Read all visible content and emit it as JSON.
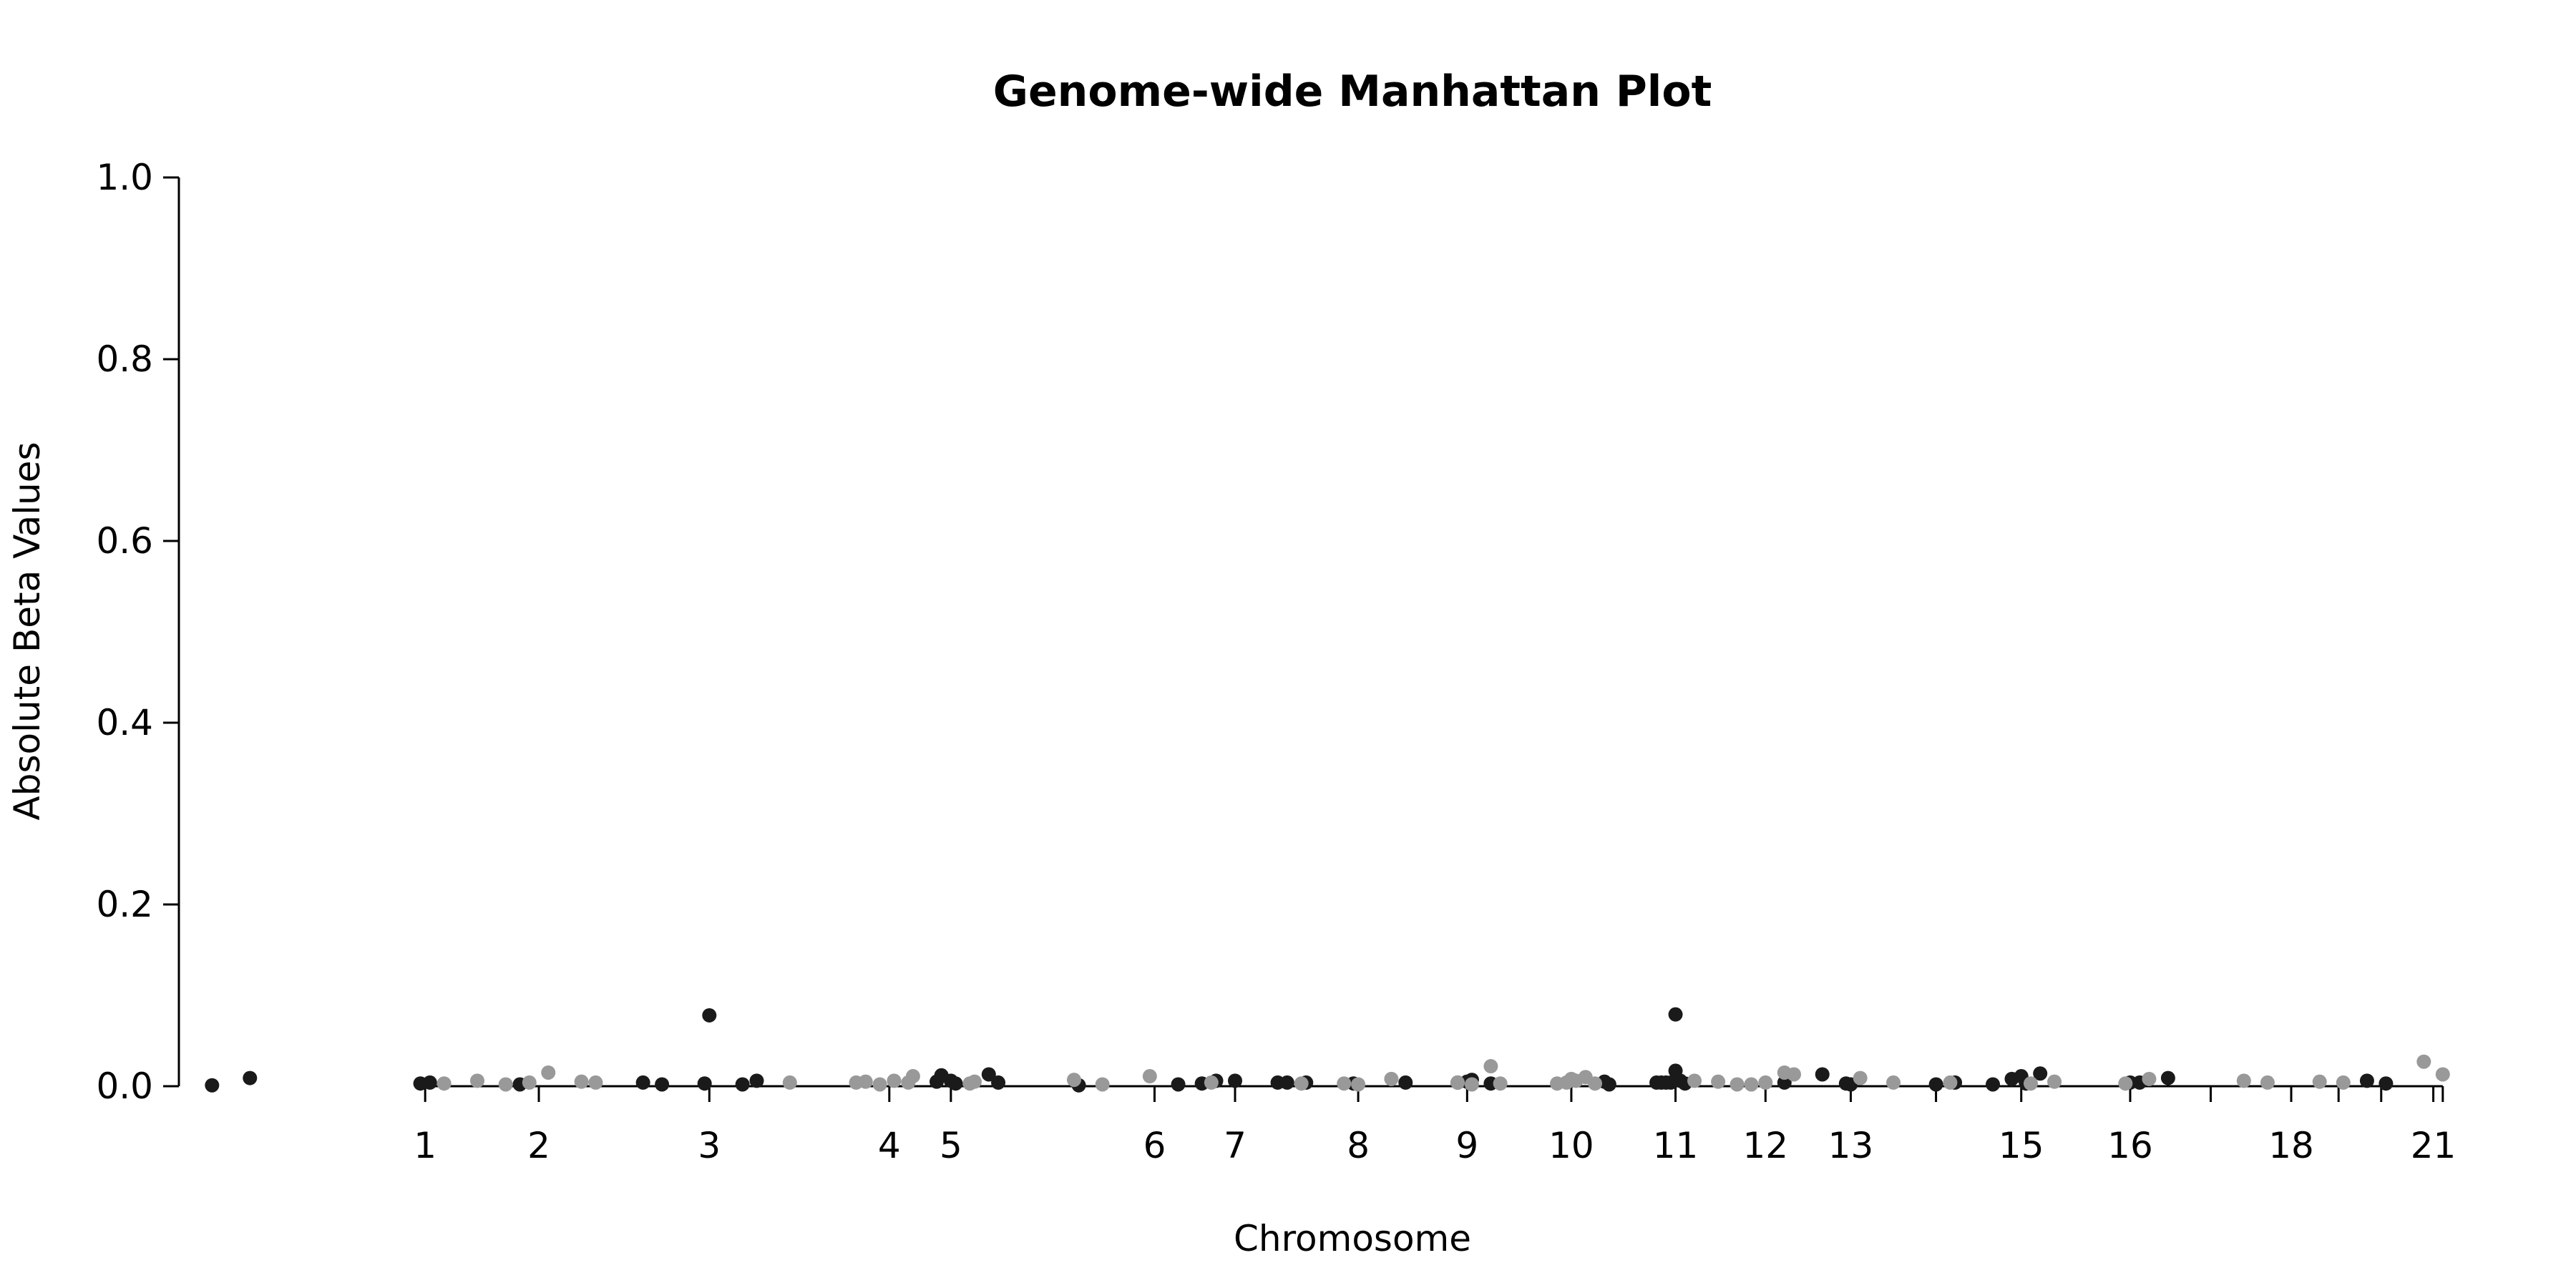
{
  "chart_data": {
    "type": "scatter",
    "title": "Genome-wide Manhattan Plot",
    "xlabel": "Chromosome",
    "ylabel": "Absolute Beta Values",
    "xlim": [
      -1.6,
      22.8
    ],
    "ylim": [
      0,
      1.0
    ],
    "yticks": [
      0.0,
      0.2,
      0.4,
      0.6,
      0.8,
      1.0
    ],
    "ytick_labels": [
      "0.0",
      "0.2",
      "0.4",
      "0.6",
      "0.8",
      "1.0"
    ],
    "xticks": [
      1.0,
      2.2,
      4.0,
      5.9,
      6.55,
      8.7,
      9.55,
      10.85,
      12.0,
      13.1,
      14.2,
      15.15,
      16.05,
      16.95,
      17.85,
      19.0,
      19.85,
      20.7,
      21.2,
      21.65,
      22.2,
      22.3
    ],
    "xtick_labels": [
      "1",
      "2",
      "3",
      "4",
      "5",
      "6",
      "7",
      "8",
      "9",
      "10",
      "11",
      "12",
      "13",
      "",
      "15",
      "16",
      "",
      "18",
      "",
      "",
      "21",
      ""
    ],
    "grid": false,
    "legend": "none",
    "colors": {
      "dark": "#1a1a1a",
      "light": "#999999"
    },
    "series": [
      {
        "color": "dark",
        "points": [
          [
            -1.25,
            0.001
          ],
          [
            -0.85,
            0.009
          ],
          [
            0.95,
            0.003
          ],
          [
            1.05,
            0.004
          ],
          [
            2.0,
            0.002
          ],
          [
            3.3,
            0.004
          ],
          [
            3.5,
            0.002
          ],
          [
            3.95,
            0.003
          ],
          [
            4.0,
            0.078
          ],
          [
            4.35,
            0.002
          ],
          [
            4.5,
            0.006
          ],
          [
            6.4,
            0.005
          ],
          [
            6.45,
            0.012
          ],
          [
            6.55,
            0.006
          ],
          [
            6.6,
            0.003
          ],
          [
            6.95,
            0.013
          ],
          [
            7.05,
            0.004
          ],
          [
            7.9,
            0.001
          ],
          [
            8.95,
            0.002
          ],
          [
            9.2,
            0.003
          ],
          [
            9.35,
            0.006
          ],
          [
            9.55,
            0.006
          ],
          [
            10.0,
            0.004
          ],
          [
            10.1,
            0.004
          ],
          [
            10.3,
            0.004
          ],
          [
            10.8,
            0.003
          ],
          [
            11.35,
            0.004
          ],
          [
            11.9,
            0.004
          ],
          [
            12.0,
            0.005
          ],
          [
            12.05,
            0.007
          ],
          [
            12.25,
            0.003
          ],
          [
            13.45,
            0.005
          ],
          [
            13.5,
            0.002
          ],
          [
            14.0,
            0.004
          ],
          [
            14.05,
            0.004
          ],
          [
            14.1,
            0.004
          ],
          [
            14.15,
            0.004
          ],
          [
            14.2,
            0.017
          ],
          [
            14.2,
            0.079
          ],
          [
            14.25,
            0.006
          ],
          [
            14.3,
            0.003
          ],
          [
            15.35,
            0.004
          ],
          [
            15.75,
            0.013
          ],
          [
            16.0,
            0.003
          ],
          [
            16.05,
            0.002
          ],
          [
            16.95,
            0.002
          ],
          [
            17.15,
            0.004
          ],
          [
            17.55,
            0.002
          ],
          [
            17.75,
            0.008
          ],
          [
            17.85,
            0.011
          ],
          [
            17.9,
            0.003
          ],
          [
            18.05,
            0.014
          ],
          [
            19.0,
            0.004
          ],
          [
            19.1,
            0.004
          ],
          [
            19.4,
            0.009
          ],
          [
            21.5,
            0.006
          ],
          [
            21.7,
            0.003
          ]
        ]
      },
      {
        "color": "light",
        "points": [
          [
            1.2,
            0.003
          ],
          [
            1.55,
            0.006
          ],
          [
            1.85,
            0.002
          ],
          [
            2.1,
            0.004
          ],
          [
            2.3,
            0.015
          ],
          [
            2.65,
            0.005
          ],
          [
            2.8,
            0.004
          ],
          [
            4.85,
            0.004
          ],
          [
            5.55,
            0.004
          ],
          [
            5.65,
            0.005
          ],
          [
            5.8,
            0.002
          ],
          [
            5.95,
            0.006
          ],
          [
            6.1,
            0.004
          ],
          [
            6.15,
            0.011
          ],
          [
            6.75,
            0.003
          ],
          [
            6.8,
            0.005
          ],
          [
            7.85,
            0.007
          ],
          [
            8.15,
            0.002
          ],
          [
            8.65,
            0.011
          ],
          [
            9.3,
            0.004
          ],
          [
            10.25,
            0.003
          ],
          [
            10.7,
            0.003
          ],
          [
            10.85,
            0.002
          ],
          [
            11.2,
            0.008
          ],
          [
            11.9,
            0.004
          ],
          [
            12.05,
            0.002
          ],
          [
            12.25,
            0.022
          ],
          [
            12.35,
            0.003
          ],
          [
            12.95,
            0.003
          ],
          [
            13.05,
            0.004
          ],
          [
            13.1,
            0.008
          ],
          [
            13.15,
            0.006
          ],
          [
            13.25,
            0.01
          ],
          [
            13.35,
            0.003
          ],
          [
            14.4,
            0.006
          ],
          [
            14.65,
            0.005
          ],
          [
            14.85,
            0.002
          ],
          [
            15.0,
            0.002
          ],
          [
            15.15,
            0.004
          ],
          [
            15.35,
            0.015
          ],
          [
            15.45,
            0.013
          ],
          [
            16.15,
            0.009
          ],
          [
            16.5,
            0.004
          ],
          [
            17.1,
            0.004
          ],
          [
            17.95,
            0.003
          ],
          [
            18.2,
            0.005
          ],
          [
            18.95,
            0.003
          ],
          [
            19.2,
            0.008
          ],
          [
            20.2,
            0.006
          ],
          [
            20.45,
            0.004
          ],
          [
            21.0,
            0.005
          ],
          [
            21.25,
            0.004
          ],
          [
            22.1,
            0.027
          ],
          [
            22.3,
            0.013
          ]
        ]
      }
    ]
  }
}
